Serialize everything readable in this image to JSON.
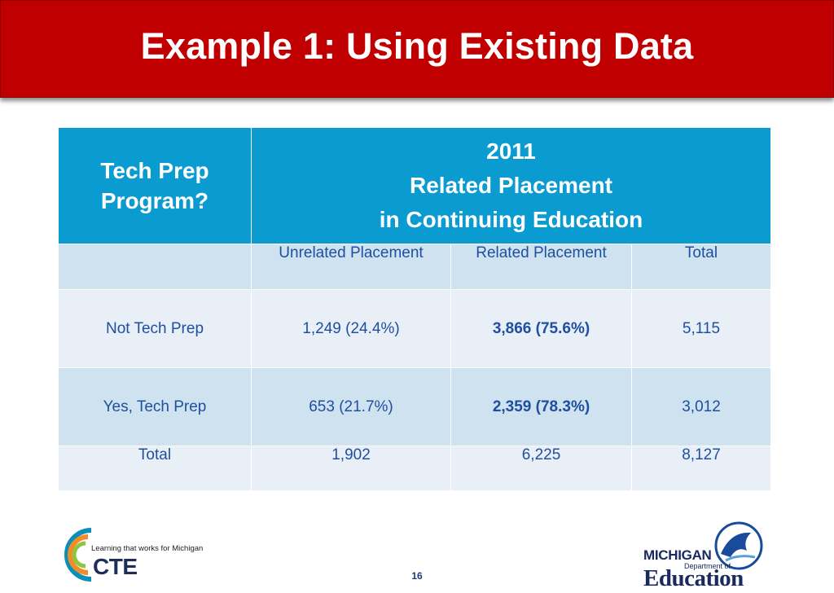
{
  "slide": {
    "title": "Example 1: Using Existing Data",
    "page_number": "16"
  },
  "table": {
    "header_left": [
      "Tech Prep",
      "Program?"
    ],
    "header_right": [
      "2011",
      "Related Placement",
      "in Continuing Education"
    ],
    "subheader": [
      "",
      "Unrelated Placement",
      "Related Placement",
      "Total"
    ],
    "rows": [
      [
        "Not Tech Prep",
        "1,249 (24.4%)",
        "3,866 (75.6%)",
        "5,115"
      ],
      [
        "Yes, Tech Prep",
        "653 (21.7%)",
        "2,359 (78.3%)",
        "3,012"
      ],
      [
        "Total",
        "1,902",
        "6,225",
        "8,127"
      ]
    ]
  },
  "logos": {
    "cte_tagline": "Learning that works for Michigan",
    "cte_name": "CTE",
    "mde_state": "MICHIGAN",
    "mde_dept": "Department of",
    "mde_name": "Education"
  },
  "colors": {
    "title_bar": "#c00000",
    "table_header": "#0a9bd0",
    "row_light": "#e8eff7",
    "row_dark": "#cfe2ef",
    "text_blue": "#1f4fa0"
  }
}
